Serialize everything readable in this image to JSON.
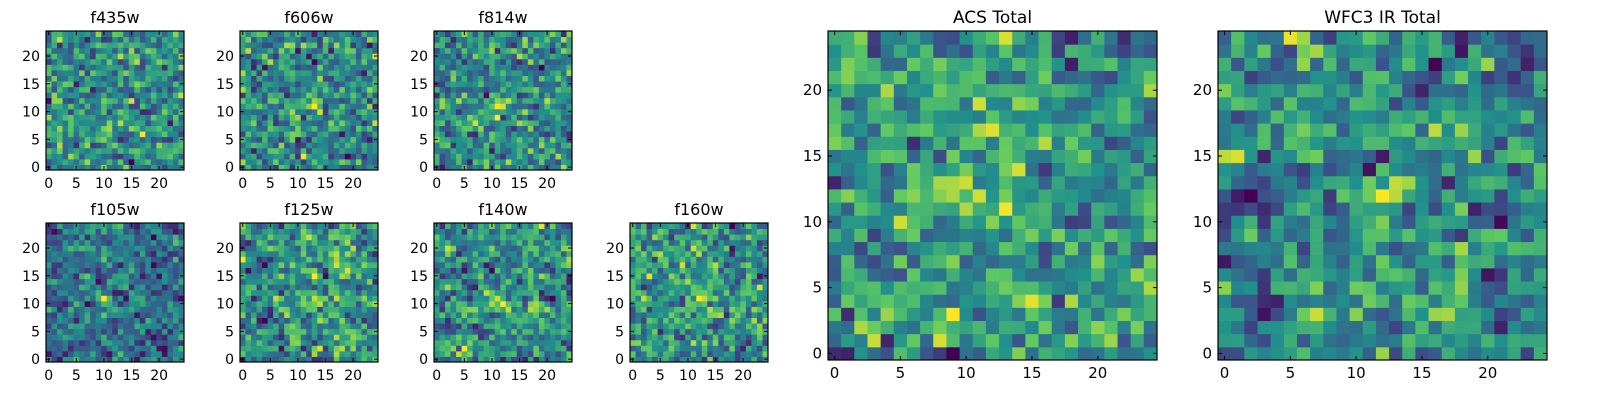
{
  "figure": {
    "colormap": "viridis",
    "colormap_stops": [
      "#440154",
      "#3b528b",
      "#21918c",
      "#5ec962",
      "#fde725"
    ],
    "axis_color": "#000000",
    "background": "#ffffff"
  },
  "chart_data": [
    {
      "type": "heatmap",
      "title": "f435w",
      "size": 25,
      "xlim": [
        0,
        24
      ],
      "ylim": [
        0,
        24
      ],
      "xticks": [
        0,
        5,
        10,
        15,
        20
      ],
      "yticks": [
        0,
        5,
        10,
        15,
        20
      ],
      "peak": null,
      "noise": 1.0,
      "seed": 11
    },
    {
      "type": "heatmap",
      "title": "f606w",
      "size": 25,
      "xlim": [
        0,
        24
      ],
      "ylim": [
        0,
        24
      ],
      "xticks": [
        0,
        5,
        10,
        15,
        20
      ],
      "yticks": [
        0,
        5,
        10,
        15,
        20
      ],
      "peak": [
        12,
        11
      ],
      "noise": 1.0,
      "seed": 23
    },
    {
      "type": "heatmap",
      "title": "f814w",
      "size": 25,
      "xlim": [
        0,
        24
      ],
      "ylim": [
        0,
        24
      ],
      "xticks": [
        0,
        5,
        10,
        15,
        20
      ],
      "yticks": [
        0,
        5,
        10,
        15,
        20
      ],
      "peak": [
        11,
        11
      ],
      "noise": 1.0,
      "seed": 37
    },
    {
      "type": "heatmap",
      "title": "f105w",
      "size": 25,
      "xlim": [
        0,
        24
      ],
      "ylim": [
        0,
        24
      ],
      "xticks": [
        0,
        5,
        10,
        15,
        20
      ],
      "yticks": [
        0,
        5,
        10,
        15,
        20
      ],
      "peak": [
        10,
        11
      ],
      "noise": 0.6,
      "seed": 41
    },
    {
      "type": "heatmap",
      "title": "f125w",
      "size": 25,
      "xlim": [
        0,
        24
      ],
      "ylim": [
        0,
        24
      ],
      "xticks": [
        0,
        5,
        10,
        15,
        20
      ],
      "yticks": [
        0,
        5,
        10,
        15,
        20
      ],
      "peak": [
        13,
        11
      ],
      "noise": 0.6,
      "seed": 53
    },
    {
      "type": "heatmap",
      "title": "f140w",
      "size": 25,
      "xlim": [
        0,
        24
      ],
      "ylim": [
        0,
        24
      ],
      "xticks": [
        0,
        5,
        10,
        15,
        20
      ],
      "yticks": [
        0,
        5,
        10,
        15,
        20
      ],
      "peak": [
        11,
        11
      ],
      "noise": 0.6,
      "seed": 67
    },
    {
      "type": "heatmap",
      "title": "f160w",
      "size": 25,
      "xlim": [
        0,
        24
      ],
      "ylim": [
        0,
        24
      ],
      "xticks": [
        0,
        5,
        10,
        15,
        20
      ],
      "yticks": [
        0,
        5,
        10,
        15,
        20
      ],
      "peak": [
        12,
        11
      ],
      "noise": 0.7,
      "seed": 79
    },
    {
      "type": "heatmap",
      "title": "ACS Total",
      "size": 25,
      "xlim": [
        0,
        24
      ],
      "ylim": [
        0,
        24
      ],
      "xticks": [
        0,
        5,
        10,
        15,
        20
      ],
      "yticks": [
        0,
        5,
        10,
        15,
        20
      ],
      "peak": [
        11,
        12
      ],
      "noise": 0.6,
      "seed": 97
    },
    {
      "type": "heatmap",
      "title": "WFC3 IR Total",
      "size": 25,
      "xlim": [
        0,
        24
      ],
      "ylim": [
        0,
        24
      ],
      "xticks": [
        0,
        5,
        10,
        15,
        20
      ],
      "yticks": [
        0,
        5,
        10,
        15,
        20
      ],
      "peak": [
        12,
        12
      ],
      "noise": 0.5,
      "seed": 109
    }
  ]
}
